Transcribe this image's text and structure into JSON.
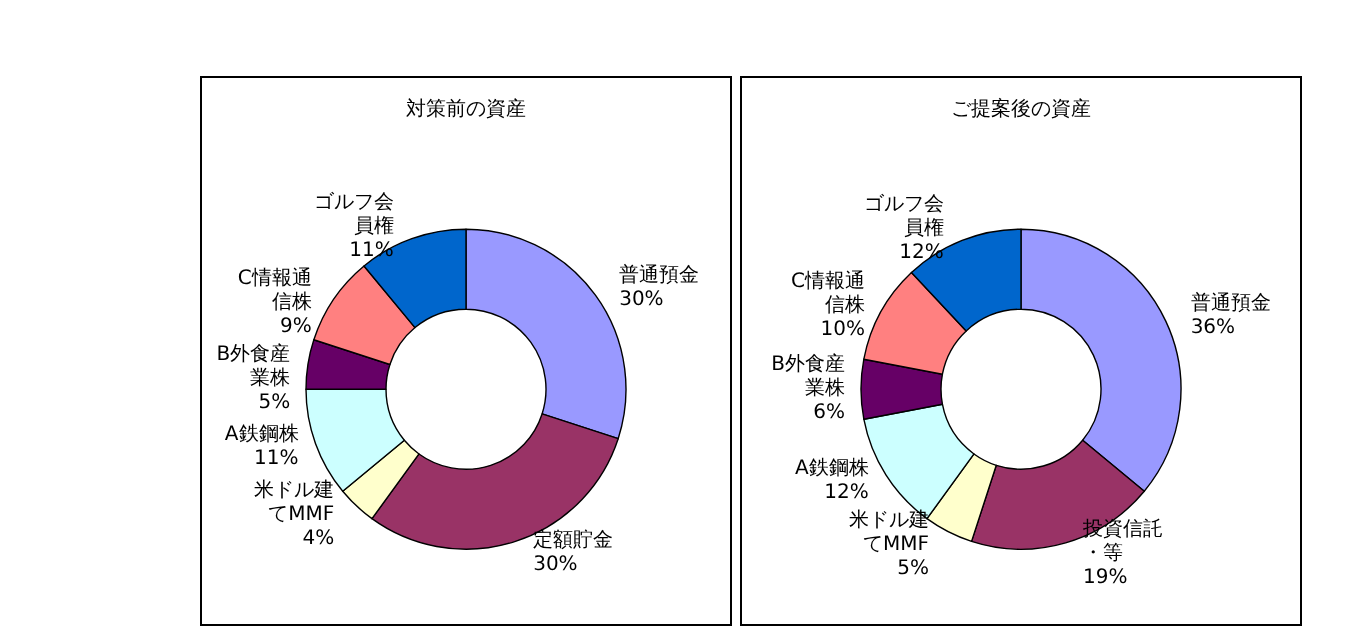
{
  "chart_data": [
    {
      "type": "donut",
      "title": "対策前の資産",
      "categories": [
        "普通預金",
        "定額貯金",
        "米ドル建てMMF",
        "A鉄鋼株",
        "B外食産業株",
        "C情報通信株",
        "ゴルフ会員権"
      ],
      "values": [
        30,
        30,
        4,
        11,
        5,
        9,
        11
      ],
      "value_labels": [
        "30%",
        "30%",
        "4%",
        "11%",
        "5%",
        "9%",
        "11%"
      ],
      "colors": [
        "#9999ff",
        "#993366",
        "#ffffcc",
        "#ccffff",
        "#660066",
        "#ff8080",
        "#0066cc"
      ],
      "legend": false
    },
    {
      "type": "donut",
      "title": "ご提案後の資産",
      "categories": [
        "普通預金",
        "投資信託・等",
        "米ドル建てMMF",
        "A鉄鋼株",
        "B外食産業株",
        "C情報通信株",
        "ゴルフ会員権"
      ],
      "values": [
        36,
        19,
        5,
        12,
        6,
        10,
        12
      ],
      "value_labels": [
        "36%",
        "19%",
        "5%",
        "12%",
        "6%",
        "10%",
        "12%"
      ],
      "colors": [
        "#9999ff",
        "#993366",
        "#ffffcc",
        "#ccffff",
        "#660066",
        "#ff8080",
        "#0066cc"
      ],
      "legend": false
    }
  ]
}
